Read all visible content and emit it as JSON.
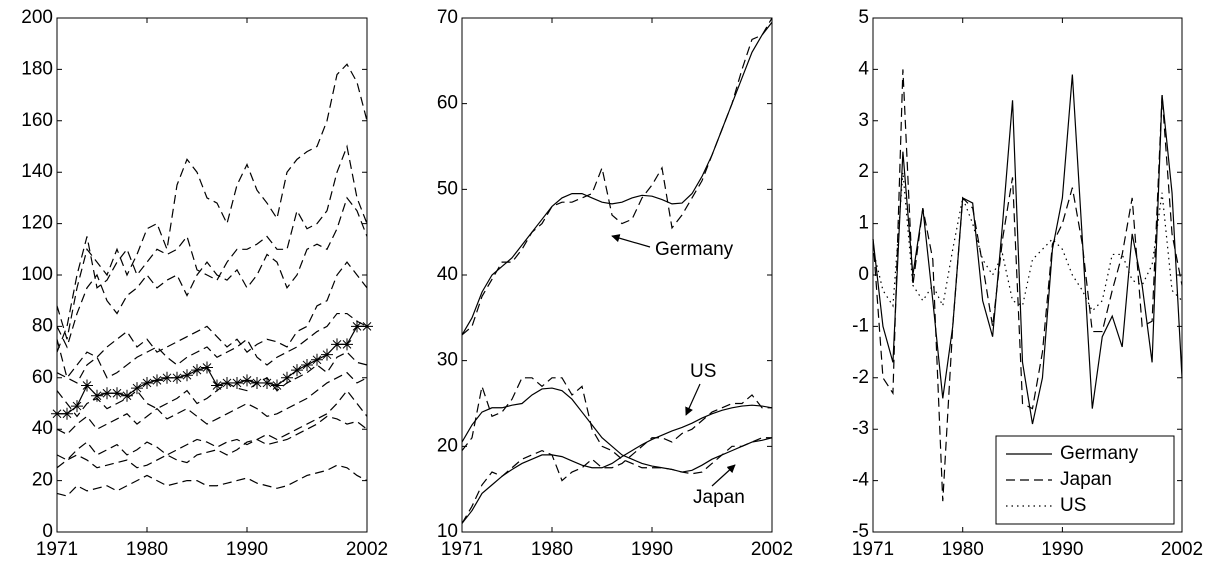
{
  "chart_data": [
    {
      "type": "line",
      "x": [
        1971,
        1972,
        1973,
        1974,
        1975,
        1976,
        1977,
        1978,
        1979,
        1980,
        1981,
        1982,
        1983,
        1984,
        1985,
        1986,
        1987,
        1988,
        1989,
        1990,
        1991,
        1992,
        1993,
        1994,
        1995,
        1996,
        1997,
        1998,
        1999,
        2000,
        2001,
        2002
      ],
      "xlim": [
        1971,
        2002
      ],
      "xticks": [
        1971,
        1980,
        1990,
        2002
      ],
      "ylim": [
        0,
        200
      ],
      "yticks": [
        0,
        20,
        40,
        60,
        80,
        100,
        120,
        140,
        160,
        180,
        200
      ],
      "series": [
        {
          "style": "dashed",
          "color": "#000",
          "values": [
            88,
            75,
            95,
            110,
            105,
            100,
            110,
            100,
            108,
            118,
            120,
            110,
            135,
            145,
            140,
            130,
            128,
            120,
            135,
            143,
            133,
            128,
            122,
            140,
            145,
            148,
            150,
            160,
            178,
            182,
            175,
            160
          ]
        },
        {
          "style": "dashed",
          "color": "#000",
          "values": [
            70,
            80,
            100,
            115,
            95,
            98,
            105,
            110,
            100,
            105,
            110,
            108,
            110,
            115,
            102,
            100,
            98,
            105,
            110,
            110,
            112,
            115,
            110,
            110,
            125,
            118,
            120,
            125,
            140,
            150,
            130,
            120
          ]
        },
        {
          "style": "dashed",
          "color": "#000",
          "values": [
            80,
            72,
            85,
            95,
            100,
            90,
            85,
            92,
            95,
            100,
            95,
            98,
            100,
            92,
            100,
            105,
            100,
            98,
            102,
            95,
            100,
            108,
            105,
            95,
            100,
            110,
            112,
            110,
            118,
            130,
            125,
            115
          ]
        },
        {
          "style": "dashed",
          "color": "#000",
          "values": [
            75,
            60,
            65,
            70,
            68,
            72,
            75,
            78,
            72,
            75,
            70,
            72,
            74,
            76,
            78,
            80,
            76,
            72,
            75,
            70,
            73,
            75,
            74,
            72,
            78,
            80,
            88,
            90,
            100,
            105,
            100,
            95
          ]
        },
        {
          "style": "dashed",
          "color": "#000",
          "values": [
            62,
            60,
            58,
            65,
            68,
            60,
            62,
            65,
            68,
            70,
            72,
            68,
            65,
            68,
            70,
            72,
            68,
            70,
            72,
            75,
            68,
            65,
            68,
            70,
            72,
            75,
            78,
            80,
            85,
            85,
            82,
            80
          ]
        },
        {
          "style": "dashed",
          "color": "#000",
          "values": [
            55,
            50,
            45,
            50,
            52,
            48,
            50,
            52,
            55,
            50,
            48,
            50,
            52,
            55,
            50,
            52,
            55,
            58,
            56,
            55,
            58,
            60,
            55,
            58,
            60,
            62,
            65,
            62,
            68,
            70,
            66,
            65
          ]
        },
        {
          "style": "dashed",
          "color": "#000",
          "values": [
            40,
            38,
            42,
            45,
            40,
            42,
            44,
            46,
            42,
            45,
            48,
            44,
            46,
            48,
            45,
            42,
            44,
            46,
            48,
            50,
            48,
            45,
            46,
            48,
            50,
            52,
            55,
            58,
            60,
            62,
            58,
            60
          ]
        },
        {
          "style": "dashed",
          "color": "#000",
          "values": [
            30,
            28,
            32,
            35,
            30,
            32,
            34,
            30,
            32,
            35,
            33,
            30,
            32,
            34,
            36,
            35,
            33,
            35,
            36,
            34,
            36,
            38,
            36,
            38,
            40,
            42,
            44,
            46,
            50,
            55,
            50,
            45
          ]
        },
        {
          "style": "dashed",
          "color": "#000",
          "values": [
            25,
            28,
            30,
            28,
            25,
            26,
            27,
            28,
            25,
            26,
            28,
            30,
            28,
            27,
            30,
            31,
            32,
            30,
            32,
            35,
            36,
            34,
            35,
            36,
            38,
            40,
            42,
            45,
            44,
            42,
            43,
            40
          ]
        },
        {
          "style": "dashed",
          "color": "#000",
          "values": [
            15,
            14,
            18,
            16,
            17,
            18,
            16,
            18,
            20,
            22,
            20,
            18,
            19,
            20,
            20,
            18,
            18,
            19,
            20,
            21,
            19,
            18,
            17,
            18,
            20,
            22,
            23,
            24,
            26,
            25,
            22,
            20
          ]
        },
        {
          "style": "solid",
          "marker": "star",
          "color": "#000",
          "values": [
            46,
            46,
            49,
            57,
            53,
            54,
            54,
            53,
            56,
            58,
            59,
            60,
            60,
            61,
            63,
            64,
            57,
            58,
            58,
            59,
            58,
            58,
            57,
            60,
            63,
            65,
            67,
            69,
            73,
            73,
            80,
            80
          ]
        }
      ]
    },
    {
      "type": "line",
      "x": [
        1971,
        1972,
        1973,
        1974,
        1975,
        1976,
        1977,
        1978,
        1979,
        1980,
        1981,
        1982,
        1983,
        1984,
        1985,
        1986,
        1987,
        1988,
        1989,
        1990,
        1991,
        1992,
        1993,
        1994,
        1995,
        1996,
        1997,
        1998,
        1999,
        2000,
        2001,
        2002
      ],
      "xlim": [
        1971,
        2002
      ],
      "xticks": [
        1971,
        1980,
        1990,
        2002
      ],
      "ylim": [
        10,
        70
      ],
      "yticks": [
        10,
        20,
        30,
        40,
        50,
        60,
        70
      ],
      "annotations": [
        "Germany",
        "US",
        "Japan"
      ],
      "series": [
        {
          "style": "solid",
          "color": "#000",
          "values": [
            33,
            35,
            38,
            40,
            41,
            42,
            43.5,
            45,
            46.5,
            48,
            49,
            49.5,
            49.5,
            49,
            48.5,
            48.3,
            48.5,
            49,
            49.3,
            49.2,
            48.8,
            48.3,
            48.4,
            49.5,
            51.5,
            54,
            57,
            60,
            63,
            66,
            68,
            69.5
          ]
        },
        {
          "style": "dashed",
          "color": "#000",
          "values": [
            33,
            34,
            37.5,
            39.5,
            41.5,
            41.5,
            43,
            45,
            46,
            48,
            48.5,
            48.5,
            49,
            49.5,
            52.5,
            47,
            46,
            46.5,
            49,
            50.5,
            52.5,
            45.5,
            47,
            49,
            51,
            54,
            57,
            60,
            64,
            67.5,
            68,
            70
          ]
        },
        {
          "style": "solid",
          "color": "#000",
          "values": [
            20.5,
            22.5,
            24,
            24.5,
            24.5,
            24.8,
            25,
            26,
            26.7,
            26.8,
            26.5,
            25.5,
            24,
            22.5,
            21,
            20,
            19,
            18.5,
            18,
            17.7,
            17.5,
            17.3,
            17,
            17.2,
            17.8,
            18.5,
            19,
            19.5,
            20,
            20.5,
            20.7,
            21
          ]
        },
        {
          "style": "dashed",
          "color": "#000",
          "values": [
            19.5,
            21,
            27,
            23.5,
            24,
            25.5,
            28,
            28,
            27,
            28,
            28,
            26,
            27,
            22,
            20,
            19.5,
            18.5,
            18,
            17.5,
            17.5,
            17.5,
            17.3,
            17,
            16.8,
            17,
            18,
            19,
            20,
            20,
            20.5,
            21,
            21
          ]
        },
        {
          "style": "solid",
          "color": "#000",
          "values": [
            11,
            12.5,
            14.5,
            15.5,
            16.5,
            17.3,
            18,
            18.5,
            19,
            19,
            18.8,
            18.3,
            17.8,
            17.5,
            17.5,
            18,
            18.8,
            19.5,
            20.2,
            20.8,
            21.3,
            21.8,
            22.2,
            22.7,
            23.3,
            23.8,
            24.2,
            24.5,
            24.7,
            24.8,
            24.7,
            24.5
          ]
        },
        {
          "style": "dashed",
          "color": "#000",
          "values": [
            11,
            13,
            15.5,
            17,
            16.5,
            17.5,
            18.5,
            19,
            19.5,
            19,
            16,
            17,
            17.5,
            18.5,
            17.5,
            17.5,
            18,
            19,
            20,
            21,
            21,
            20.5,
            21.5,
            22,
            23,
            24,
            24.5,
            25,
            25,
            26,
            24.5,
            24.5
          ]
        }
      ]
    },
    {
      "type": "line",
      "x": [
        1971,
        1972,
        1973,
        1974,
        1975,
        1976,
        1977,
        1978,
        1979,
        1980,
        1981,
        1982,
        1983,
        1984,
        1985,
        1986,
        1987,
        1988,
        1989,
        1990,
        1991,
        1992,
        1993,
        1994,
        1995,
        1996,
        1997,
        1998,
        1999,
        2000,
        2001,
        2002
      ],
      "xlim": [
        1971,
        2002
      ],
      "xticks": [
        1971,
        1980,
        1990,
        2002
      ],
      "ylim": [
        -5,
        5
      ],
      "yticks": [
        -5,
        -4,
        -3,
        -2,
        -1,
        0,
        1,
        2,
        3,
        4,
        5
      ],
      "legend": "lower right",
      "series": [
        {
          "name": "Germany",
          "style": "solid",
          "color": "#000",
          "values": [
            0.7,
            -1,
            -1.7,
            2.4,
            0,
            1.3,
            -0.5,
            -2.4,
            -1,
            1.5,
            1.4,
            -0.5,
            -1.2,
            1,
            3.4,
            -1.7,
            -2.9,
            -2,
            0.5,
            1.5,
            3.9,
            0.7,
            -2.6,
            -1.2,
            -0.8,
            -1.4,
            0.8,
            -0.2,
            -1.7,
            3.5,
            1.6,
            -2
          ]
        },
        {
          "name": "Japan",
          "style": "dashed",
          "color": "#000",
          "values": [
            0.7,
            -2,
            -2.3,
            4,
            -0.2,
            1.3,
            0.3,
            -4.4,
            -1,
            1.5,
            1.3,
            0.2,
            -1,
            0.7,
            1.9,
            -2.5,
            -2.6,
            -1.5,
            0.6,
            1,
            1.7,
            0.6,
            -1.1,
            -1.1,
            -0.3,
            0.4,
            1.5,
            -1,
            -0.9,
            3.5,
            0.8,
            -0.2
          ]
        },
        {
          "name": "US",
          "style": "dotted",
          "color": "#000",
          "values": [
            0.5,
            -0.3,
            -0.6,
            2,
            -0.2,
            -0.5,
            -0.2,
            -0.6,
            0.5,
            1.5,
            1,
            0.3,
            0,
            0.4,
            -0.5,
            -0.6,
            0.3,
            0.5,
            0.7,
            0.5,
            0,
            -0.3,
            -0.7,
            -0.5,
            0.4,
            0.4,
            -0.1,
            -0.2,
            0.2,
            1.6,
            -0.3,
            -0.5
          ]
        }
      ]
    }
  ]
}
